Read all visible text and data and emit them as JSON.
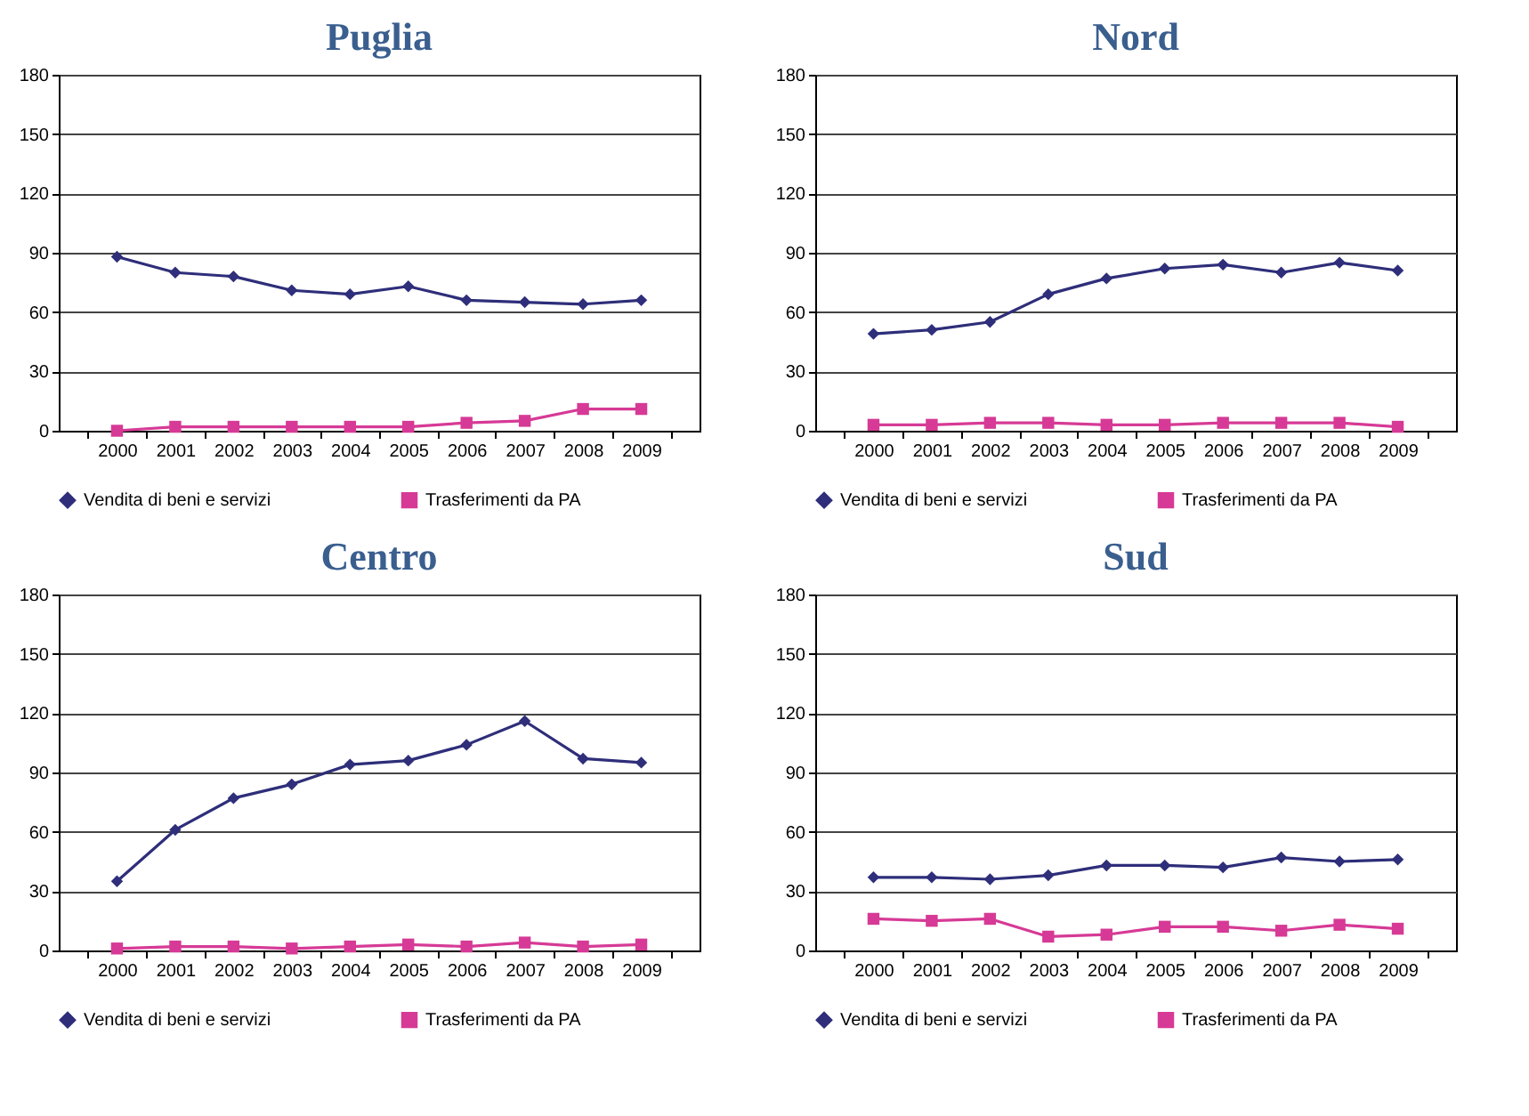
{
  "chart_data": [
    {
      "type": "line",
      "title": "Puglia",
      "categories": [
        "2000",
        "2001",
        "2002",
        "2003",
        "2004",
        "2005",
        "2006",
        "2007",
        "2008",
        "2009"
      ],
      "ylim": [
        0,
        180
      ],
      "yticks": [
        0,
        30,
        60,
        90,
        120,
        150,
        180
      ],
      "grid": "y",
      "legend": "bottom",
      "line_style": "solid",
      "series": [
        {
          "name": "Vendita di beni e servizi",
          "color": "#2e2e7a",
          "marker": "diamond",
          "values": [
            88,
            80,
            78,
            71,
            69,
            73,
            66,
            65,
            64,
            66
          ]
        },
        {
          "name": "Trasferimenti da PA",
          "color": "#d63a96",
          "marker": "square",
          "values": [
            0,
            2,
            2,
            2,
            2,
            2,
            4,
            5,
            11,
            11
          ]
        }
      ]
    },
    {
      "type": "line",
      "title": "Nord",
      "categories": [
        "2000",
        "2001",
        "2002",
        "2003",
        "2004",
        "2005",
        "2006",
        "2007",
        "2008",
        "2009"
      ],
      "ylim": [
        0,
        180
      ],
      "yticks": [
        0,
        30,
        60,
        90,
        120,
        150,
        180
      ],
      "grid": "y",
      "legend": "bottom",
      "line_style": "solid",
      "series": [
        {
          "name": "Vendita di beni e servizi",
          "color": "#2e2e7a",
          "marker": "diamond",
          "values": [
            49,
            51,
            55,
            69,
            77,
            82,
            84,
            80,
            85,
            81
          ]
        },
        {
          "name": "Trasferimenti da PA",
          "color": "#d63a96",
          "marker": "square",
          "values": [
            3,
            3,
            4,
            4,
            3,
            3,
            4,
            4,
            4,
            2
          ]
        }
      ]
    },
    {
      "type": "line",
      "title": "Centro",
      "categories": [
        "2000",
        "2001",
        "2002",
        "2003",
        "2004",
        "2005",
        "2006",
        "2007",
        "2008",
        "2009"
      ],
      "ylim": [
        0,
        180
      ],
      "yticks": [
        0,
        30,
        60,
        90,
        120,
        150,
        180
      ],
      "grid": "y",
      "legend": "bottom",
      "line_style": "solid",
      "series": [
        {
          "name": "Vendita di beni e servizi",
          "color": "#2e2e7a",
          "marker": "diamond",
          "values": [
            35,
            61,
            77,
            84,
            94,
            96,
            104,
            116,
            97,
            95
          ]
        },
        {
          "name": "Trasferimenti da PA",
          "color": "#d63a96",
          "marker": "square",
          "values": [
            1,
            2,
            2,
            1,
            2,
            3,
            2,
            4,
            2,
            3
          ]
        }
      ]
    },
    {
      "type": "line",
      "title": "Sud",
      "categories": [
        "2000",
        "2001",
        "2002",
        "2003",
        "2004",
        "2005",
        "2006",
        "2007",
        "2008",
        "2009"
      ],
      "ylim": [
        0,
        180
      ],
      "yticks": [
        0,
        30,
        60,
        90,
        120,
        150,
        180
      ],
      "grid": "y",
      "legend": "bottom",
      "line_style": "solid",
      "series": [
        {
          "name": "Vendita di beni e servizi",
          "color": "#2e2e7a",
          "marker": "diamond",
          "values": [
            37,
            37,
            36,
            38,
            43,
            43,
            42,
            47,
            45,
            46
          ]
        },
        {
          "name": "Trasferimenti da PA",
          "color": "#d63a96",
          "marker": "square",
          "values": [
            16,
            15,
            16,
            7,
            8,
            12,
            12,
            10,
            13,
            11
          ]
        }
      ]
    }
  ]
}
